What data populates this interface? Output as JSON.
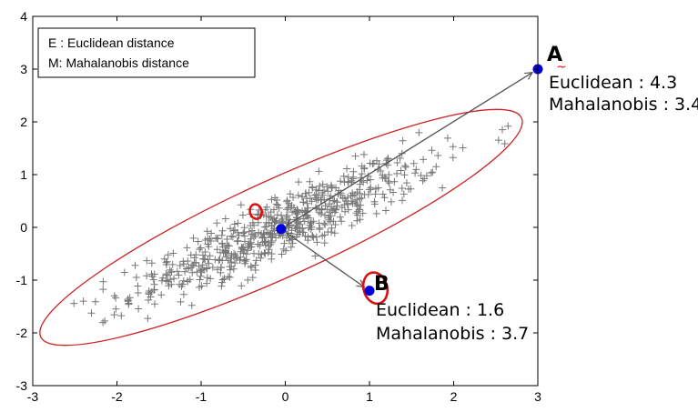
{
  "chart_data": {
    "type": "scatter",
    "title": "",
    "xlabel": "",
    "ylabel": "",
    "xlim": [
      -3,
      3
    ],
    "ylim": [
      -3,
      4
    ],
    "xticks": [
      "-3",
      "-2",
      "-1",
      "0",
      "1",
      "2",
      "3"
    ],
    "yticks": [
      "-3",
      "-2",
      "-1",
      "0",
      "1",
      "2",
      "3",
      "4"
    ],
    "grid": false,
    "legend": {
      "position": "top-left",
      "entries": [
        "E : Euclidean distance",
        "M: Mahalanobis distance"
      ]
    },
    "samples": {
      "name": "data samples",
      "marker": "plus",
      "color": "#777777",
      "count_approx": 650,
      "mean": [
        -0.05,
        0.0
      ],
      "correlation_direction": "positive"
    },
    "ellipse": {
      "center": [
        -0.05,
        0.0
      ],
      "semi_axis_major": 3.53,
      "semi_axis_minor": 0.74,
      "angle_deg": 36,
      "color": "#cc2222"
    },
    "center_point": {
      "x": -0.05,
      "y": -0.03,
      "color": "#0000dd"
    },
    "points": [
      {
        "label": "A",
        "x": 3.0,
        "y": 3.0,
        "euclidean_text": "Euclidean : 4.3",
        "mahalanobis_text": "Mahalanobis : 3.4"
      },
      {
        "label": "B",
        "x": 1.0,
        "y": -1.2,
        "euclidean_text": "Euclidean : 1.6",
        "mahalanobis_text": "Mahalanobis : 3.7"
      }
    ],
    "highlight_circles": [
      {
        "x": 1.07,
        "y": -1.15,
        "rx": 0.14,
        "ry": 0.3,
        "color": "#dd1111"
      },
      {
        "x": -0.35,
        "y": 0.3,
        "rx": 0.07,
        "ry": 0.14,
        "color": "#dd1111"
      }
    ],
    "annotation_mark": {
      "x": 3.25,
      "y": 3.0,
      "text": "~",
      "color": "#dd1111"
    }
  }
}
